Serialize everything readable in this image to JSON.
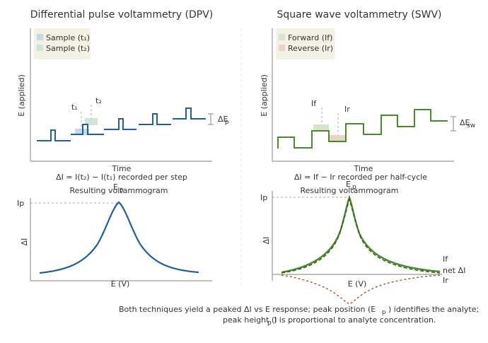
{
  "dpv": {
    "title": "Differential pulse voltammetry (DPV)",
    "ylabel": "E (applied)",
    "xlabel": "Time",
    "legend": [
      "Sample (t₁)",
      "Sample (t₂)"
    ],
    "t1": "t₁",
    "t2": "t₂",
    "pulse_label": "ΔE",
    "pulse_sub": "p",
    "caption": "ΔI = I(t₂) − I(t₁) recorded per step",
    "result_title": "Resulting voltammogram",
    "peak_label": "E",
    "peak_sub": "p",
    "peak_y": "Ip",
    "result_ylabel": "ΔI",
    "result_xlabel": "E (V)"
  },
  "swv": {
    "title": "Square wave voltammetry (SWV)",
    "ylabel": "E (applied)",
    "xlabel": "Time",
    "legend": [
      "Forward (If)",
      "Reverse (Ir)"
    ],
    "if_label": "If",
    "ir_label": "Ir",
    "amp_label": "ΔE",
    "amp_sub": "sw",
    "caption": "ΔI = If − Ir recorded per half-cycle",
    "result_title": "Resulting voltammogram",
    "peak_label": "E",
    "peak_sub": "p",
    "peak_y": "Ip",
    "result_ylabel": "ΔI",
    "result_xlabel": "E (V)",
    "curve_labels": [
      "If",
      "net ΔI",
      "Ir"
    ]
  },
  "footer": {
    "line1": "Both techniques yield a peaked ΔI vs E response; peak position (E",
    "line1_sub": "p",
    "line1_end": ") identifies the analyte;",
    "line2": "peak height (I",
    "line2_sub": "p",
    "line2_end": ") is proportional to analyte concentration."
  },
  "colors": {
    "dpv": "#1f5fa0",
    "swv": "#4a8a2a",
    "reverse": "#b5512a",
    "sample1": "#c8d8e6",
    "sample2": "#cfe3d6",
    "forward": "#d6e4cf",
    "reversefill": "#ead4c8",
    "legendbg": "#f3f0e4"
  }
}
